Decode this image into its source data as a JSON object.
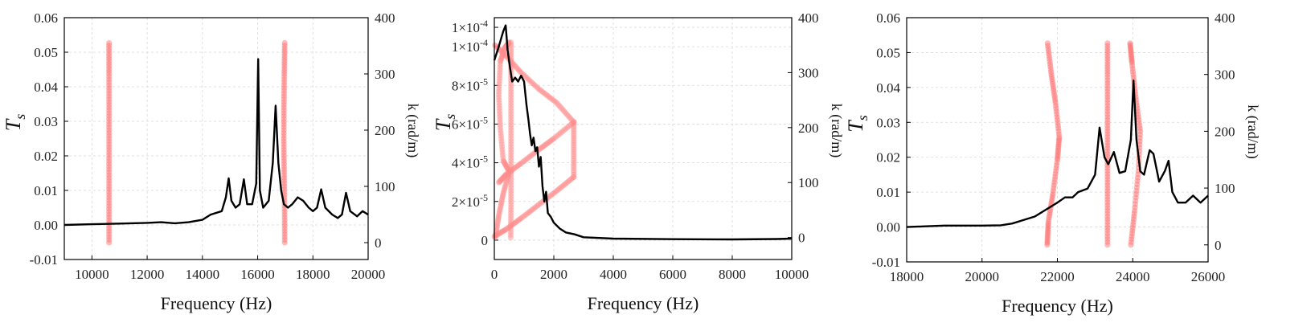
{
  "chart_data": [
    {
      "type": "line",
      "xlabel": "Frequency (Hz)",
      "ylabel_main": "T",
      "ylabel_sub": "s",
      "ylabel_right": "k (rad/m)",
      "xlim": [
        9000,
        20000
      ],
      "ylim": [
        -0.01,
        0.06
      ],
      "y2lim": [
        -30,
        400
      ],
      "xticks": [
        "10000",
        "12000",
        "14000",
        "16000",
        "18000",
        "20000"
      ],
      "yticks": [
        "-0.01",
        "0.00",
        "0.01",
        "0.02",
        "0.03",
        "0.04",
        "0.05",
        "0.06"
      ],
      "y2ticks": [
        "0",
        "100",
        "200",
        "300",
        "400"
      ],
      "grid": true,
      "colors": {
        "transmission": "#000000",
        "dispersion": "#ff6b6b"
      },
      "series": [
        {
          "role": "transmission",
          "axis": "left",
          "points": [
            [
              9000,
              0.0
            ],
            [
              10000,
              0.0002
            ],
            [
              11000,
              0.0004
            ],
            [
              12000,
              0.0006
            ],
            [
              12500,
              0.0008
            ],
            [
              13000,
              0.0005
            ],
            [
              13500,
              0.0008
            ],
            [
              14000,
              0.0015
            ],
            [
              14300,
              0.003
            ],
            [
              14700,
              0.004
            ],
            [
              14850,
              0.008
            ],
            [
              14950,
              0.0135
            ],
            [
              15050,
              0.007
            ],
            [
              15200,
              0.005
            ],
            [
              15350,
              0.006
            ],
            [
              15500,
              0.0132
            ],
            [
              15620,
              0.006
            ],
            [
              15800,
              0.006
            ],
            [
              15950,
              0.012
            ],
            [
              16020,
              0.048
            ],
            [
              16080,
              0.01
            ],
            [
              16200,
              0.005
            ],
            [
              16400,
              0.007
            ],
            [
              16550,
              0.018
            ],
            [
              16650,
              0.0345
            ],
            [
              16750,
              0.018
            ],
            [
              16850,
              0.01
            ],
            [
              16950,
              0.006
            ],
            [
              17100,
              0.005
            ],
            [
              17250,
              0.006
            ],
            [
              17450,
              0.008
            ],
            [
              17650,
              0.007
            ],
            [
              17850,
              0.005
            ],
            [
              18000,
              0.004
            ],
            [
              18150,
              0.005
            ],
            [
              18300,
              0.0103
            ],
            [
              18450,
              0.005
            ],
            [
              18700,
              0.003
            ],
            [
              18900,
              0.002
            ],
            [
              19050,
              0.003
            ],
            [
              19200,
              0.0093
            ],
            [
              19350,
              0.004
            ],
            [
              19600,
              0.0025
            ],
            [
              19800,
              0.004
            ],
            [
              20000,
              0.003
            ]
          ]
        },
        {
          "role": "dispersion",
          "axis": "right",
          "branches": [
            [
              [
                10620,
                0
              ],
              [
                10620,
                60
              ],
              [
                10620,
                120
              ],
              [
                10620,
                180
              ],
              [
                10620,
                240
              ],
              [
                10620,
                300
              ],
              [
                10620,
                355
              ]
            ],
            [
              [
                16980,
                0
              ],
              [
                16975,
                60
              ],
              [
                16960,
                120
              ],
              [
                16945,
                180
              ],
              [
                16950,
                240
              ],
              [
                16965,
                300
              ],
              [
                16980,
                355
              ]
            ]
          ]
        }
      ]
    },
    {
      "type": "line",
      "xlabel": "Frequency (Hz)",
      "ylabel_main": "T",
      "ylabel_sub": "s",
      "ylabel_right": "k (rad/m)",
      "xlim": [
        0,
        10000
      ],
      "ylim": [
        -1e-05,
        0.000115
      ],
      "y2lim": [
        -40,
        400
      ],
      "xticks": [
        "0",
        "2000",
        "4000",
        "6000",
        "8000",
        "10000"
      ],
      "yticks": [
        "0",
        "2×10",
        "4×10",
        "6×10",
        "8×10",
        "1×10",
        "1×10"
      ],
      "ytick_exponents": [
        "",
        "-5",
        "-5",
        "-5",
        "-5",
        "-4",
        "-4"
      ],
      "ytick_values": [
        0,
        2e-05,
        4e-05,
        6e-05,
        8e-05,
        0.0001,
        0.00011
      ],
      "y2ticks": [
        "0",
        "100",
        "200",
        "300",
        "400"
      ],
      "grid": true,
      "colors": {
        "transmission": "#000000",
        "dispersion": "#ff8c8c"
      },
      "series": [
        {
          "role": "transmission",
          "axis": "left",
          "points": [
            [
              0,
              9.3e-05
            ],
            [
              150,
              0.0001
            ],
            [
              300,
              0.000108
            ],
            [
              380,
              0.000111
            ],
            [
              450,
              9.8e-05
            ],
            [
              520,
              9e-05
            ],
            [
              600,
              8.2e-05
            ],
            [
              700,
              8.4e-05
            ],
            [
              800,
              8.2e-05
            ],
            [
              900,
              8.5e-05
            ],
            [
              1000,
              8.2e-05
            ],
            [
              1080,
              7e-05
            ],
            [
              1150,
              6.2e-05
            ],
            [
              1200,
              5.5e-05
            ],
            [
              1260,
              4.9e-05
            ],
            [
              1320,
              5.3e-05
            ],
            [
              1380,
              4.6e-05
            ],
            [
              1440,
              4.8e-05
            ],
            [
              1500,
              3.8e-05
            ],
            [
              1560,
              4.3e-05
            ],
            [
              1620,
              2.8e-05
            ],
            [
              1680,
              2e-05
            ],
            [
              1740,
              2.5e-05
            ],
            [
              1800,
              1.4e-05
            ],
            [
              1900,
              1.2e-05
            ],
            [
              2000,
              9e-06
            ],
            [
              2200,
              6e-06
            ],
            [
              2400,
              4e-06
            ],
            [
              2700,
              3e-06
            ],
            [
              3000,
              1.5e-06
            ],
            [
              4000,
              8e-07
            ],
            [
              6000,
              5e-07
            ],
            [
              8000,
              4e-07
            ],
            [
              9500,
              6e-07
            ],
            [
              10000,
              8e-07
            ]
          ]
        },
        {
          "role": "dispersion",
          "axis": "right",
          "branches": [
            [
              [
                30,
                0
              ],
              [
                150,
                40
              ],
              [
                300,
                80
              ],
              [
                500,
                120
              ],
              [
                300,
                140
              ],
              [
                200,
                200
              ],
              [
                150,
                260
              ],
              [
                200,
                320
              ],
              [
                350,
                345
              ],
              [
                500,
                355
              ]
            ],
            [
              [
                20,
                350
              ],
              [
                400,
                330
              ],
              [
                900,
                300
              ],
              [
                1500,
                270
              ],
              [
                2100,
                245
              ],
              [
                2670,
                210
              ]
            ],
            [
              [
                2670,
                210
              ],
              [
                2000,
                180
              ],
              [
                1500,
                160
              ],
              [
                900,
                135
              ],
              [
                400,
                115
              ],
              [
                150,
                100
              ]
            ],
            [
              [
                2670,
                210
              ],
              [
                2670,
                160
              ],
              [
                2670,
                110
              ]
            ],
            [
              [
                2670,
                110
              ],
              [
                2100,
                85
              ],
              [
                1500,
                60
              ],
              [
                900,
                35
              ],
              [
                400,
                15
              ],
              [
                0,
                2
              ]
            ],
            [
              [
                550,
                0
              ],
              [
                560,
                60
              ],
              [
                560,
                120
              ],
              [
                560,
                180
              ],
              [
                560,
                240
              ],
              [
                560,
                300
              ],
              [
                560,
                355
              ]
            ]
          ]
        }
      ]
    },
    {
      "type": "line",
      "xlabel": "Frequency (Hz)",
      "ylabel_main": "T",
      "ylabel_sub": "s",
      "ylabel_right": "k (rad/m)",
      "xlim": [
        18000,
        26000
      ],
      "ylim": [
        -0.01,
        0.06
      ],
      "y2lim": [
        -30,
        400
      ],
      "xticks": [
        "18000",
        "20000",
        "22000",
        "24000",
        "26000"
      ],
      "yticks": [
        "-0.01",
        "0.00",
        "0.01",
        "0.02",
        "0.03",
        "0.04",
        "0.05",
        "0.06"
      ],
      "y2ticks": [
        "0",
        "100",
        "200",
        "300",
        "400"
      ],
      "grid": true,
      "colors": {
        "transmission": "#000000",
        "dispersion": "#ff6b6b"
      },
      "series": [
        {
          "role": "transmission",
          "axis": "left",
          "points": [
            [
              18000,
              0.0
            ],
            [
              18500,
              0.0002
            ],
            [
              19000,
              0.0004
            ],
            [
              19500,
              0.0004
            ],
            [
              20000,
              0.0004
            ],
            [
              20500,
              0.0005
            ],
            [
              20800,
              0.001
            ],
            [
              21100,
              0.002
            ],
            [
              21400,
              0.003
            ],
            [
              21700,
              0.005
            ],
            [
              22000,
              0.007
            ],
            [
              22200,
              0.0085
            ],
            [
              22400,
              0.0085
            ],
            [
              22550,
              0.01
            ],
            [
              22800,
              0.011
            ],
            [
              23000,
              0.015
            ],
            [
              23120,
              0.0285
            ],
            [
              23250,
              0.02
            ],
            [
              23350,
              0.018
            ],
            [
              23500,
              0.0215
            ],
            [
              23650,
              0.0155
            ],
            [
              23800,
              0.016
            ],
            [
              23950,
              0.025
            ],
            [
              24020,
              0.042
            ],
            [
              24100,
              0.025
            ],
            [
              24200,
              0.016
            ],
            [
              24300,
              0.015
            ],
            [
              24450,
              0.022
            ],
            [
              24550,
              0.021
            ],
            [
              24700,
              0.013
            ],
            [
              24850,
              0.016
            ],
            [
              24950,
              0.019
            ],
            [
              25050,
              0.01
            ],
            [
              25200,
              0.007
            ],
            [
              25400,
              0.007
            ],
            [
              25600,
              0.009
            ],
            [
              25800,
              0.007
            ],
            [
              26000,
              0.009
            ]
          ]
        },
        {
          "role": "dispersion",
          "axis": "right",
          "branches": [
            [
              [
                21730,
                0
              ],
              [
                21760,
                40
              ],
              [
                21880,
                90
              ],
              [
                22000,
                150
              ],
              [
                22050,
                190
              ],
              [
                21950,
                250
              ],
              [
                21840,
                300
              ],
              [
                21740,
                355
              ]
            ],
            [
              [
                23330,
                0
              ],
              [
                23330,
                60
              ],
              [
                23330,
                120
              ],
              [
                23330,
                180
              ],
              [
                23330,
                240
              ],
              [
                23330,
                300
              ],
              [
                23330,
                355
              ]
            ],
            [
              [
                23950,
                0
              ],
              [
                24050,
                60
              ],
              [
                24150,
                130
              ],
              [
                24200,
                200
              ],
              [
                24080,
                260
              ],
              [
                23980,
                320
              ],
              [
                23930,
                355
              ]
            ]
          ]
        }
      ]
    }
  ]
}
